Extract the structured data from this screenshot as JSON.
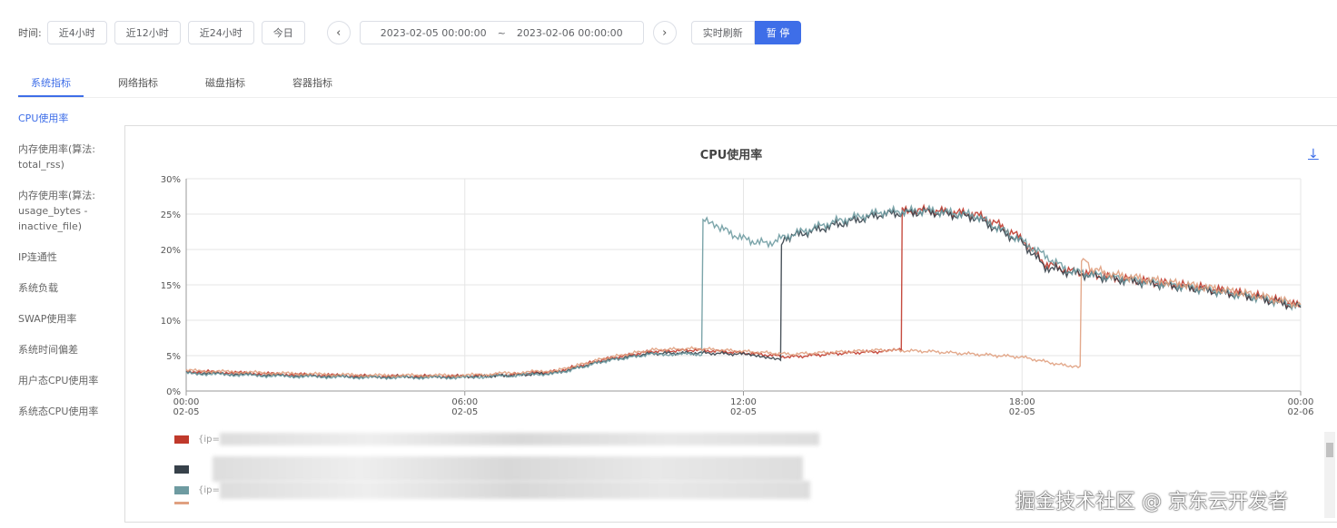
{
  "toolbar": {
    "label": "时间:",
    "quick": [
      "近4小时",
      "近12小时",
      "近24小时",
      "今日"
    ],
    "start": "2023-02-05 00:00:00",
    "sep": "~",
    "end": "2023-02-06 00:00:00",
    "prev_icon": "chevron-left-icon",
    "next_icon": "chevron-right-icon",
    "refresh": "实时刷新",
    "pause": "暂 停"
  },
  "tabs": [
    "系统指标",
    "网络指标",
    "磁盘指标",
    "容器指标"
  ],
  "sidebar": [
    "CPU使用率",
    "内存使用率(算法: total_rss)",
    "内存使用率(算法: usage_bytes - inactive_file)",
    "IP连通性",
    "系统负载",
    "SWAP使用率",
    "系统时间偏差",
    "用户态CPU使用率",
    "系统态CPU使用率"
  ],
  "download_icon": "↓",
  "watermark": "掘金技术社区 @ 京东云开发者",
  "accent": "#3e6ee8",
  "chart_data": {
    "type": "line",
    "title": "CPU使用率",
    "ylim": [
      0,
      30
    ],
    "yticks": [
      "0%",
      "5%",
      "10%",
      "15%",
      "20%",
      "25%",
      "30%"
    ],
    "xticks": [
      [
        "00:00",
        "02-05"
      ],
      [
        "06:00",
        "02-05"
      ],
      [
        "12:00",
        "02-05"
      ],
      [
        "18:00",
        "02-05"
      ],
      [
        "00:00",
        "02-06"
      ]
    ],
    "grid": true,
    "legend": "bottom",
    "series": [
      {
        "label": "{ip=",
        "color": "#c0392b",
        "points": [
          [
            0,
            2.8
          ],
          [
            2,
            2.4
          ],
          [
            4,
            2.1
          ],
          [
            6,
            2.1
          ],
          [
            7,
            2.3
          ],
          [
            8,
            2.8
          ],
          [
            9,
            4.5
          ],
          [
            10,
            5.6
          ],
          [
            11,
            5.8
          ],
          [
            12,
            5.4
          ],
          [
            13,
            4.8
          ],
          [
            14,
            5.3
          ],
          [
            15,
            5.6
          ],
          [
            15.4,
            5.8
          ],
          [
            15.42,
            25.5
          ],
          [
            16,
            25.5
          ],
          [
            17,
            25
          ],
          [
            17.5,
            23.5
          ],
          [
            18,
            21.5
          ],
          [
            18.5,
            18
          ],
          [
            19,
            17
          ],
          [
            20,
            16
          ],
          [
            21,
            15.3
          ],
          [
            22,
            14.5
          ],
          [
            23,
            13.5
          ],
          [
            24,
            12
          ]
        ]
      },
      {
        "label": "",
        "color": "#37414a",
        "points": [
          [
            0,
            2.6
          ],
          [
            2,
            2.2
          ],
          [
            4,
            2
          ],
          [
            6,
            2
          ],
          [
            7,
            2.2
          ],
          [
            8,
            2.6
          ],
          [
            9,
            4.3
          ],
          [
            10,
            5.3
          ],
          [
            11,
            5.4
          ],
          [
            12,
            5.2
          ],
          [
            12.8,
            4.6
          ],
          [
            12.82,
            21
          ],
          [
            13,
            21.8
          ],
          [
            14,
            23.5
          ],
          [
            15,
            25
          ],
          [
            16,
            25.3
          ],
          [
            17,
            24.5
          ],
          [
            18,
            21
          ],
          [
            18.5,
            17.5
          ],
          [
            19,
            16.8
          ],
          [
            20,
            15.8
          ],
          [
            21,
            15
          ],
          [
            22,
            14.2
          ],
          [
            23,
            13.2
          ],
          [
            24,
            11.8
          ]
        ]
      },
      {
        "label": "{ip=",
        "color": "#6e9ba1",
        "points": [
          [
            0,
            2.5
          ],
          [
            2,
            2.1
          ],
          [
            4,
            1.9
          ],
          [
            6,
            1.9
          ],
          [
            8,
            2.5
          ],
          [
            9,
            4.2
          ],
          [
            10,
            5.2
          ],
          [
            11.1,
            5.2
          ],
          [
            11.13,
            24
          ],
          [
            11.5,
            23
          ],
          [
            12,
            21.5
          ],
          [
            12.5,
            20.8
          ],
          [
            13,
            22
          ],
          [
            14,
            24
          ],
          [
            15,
            25.3
          ],
          [
            16,
            25.5
          ],
          [
            17,
            24.8
          ],
          [
            18,
            21.2
          ],
          [
            19,
            17
          ],
          [
            20,
            16
          ],
          [
            21,
            15.2
          ],
          [
            22,
            14.3
          ],
          [
            23,
            13.3
          ],
          [
            24,
            12
          ]
        ]
      },
      {
        "label": "",
        "color": "#e0a080",
        "points": [
          [
            0,
            2.9
          ],
          [
            2,
            2.5
          ],
          [
            4,
            2.2
          ],
          [
            6,
            2.2
          ],
          [
            8,
            2.9
          ],
          [
            9,
            4.6
          ],
          [
            10,
            5.8
          ],
          [
            11,
            6
          ],
          [
            12,
            5.6
          ],
          [
            13,
            5.2
          ],
          [
            14,
            5.5
          ],
          [
            15,
            5.8
          ],
          [
            16,
            5.6
          ],
          [
            17,
            5.2
          ],
          [
            18,
            4.8
          ],
          [
            19,
            3.5
          ],
          [
            19.25,
            3.3
          ],
          [
            19.28,
            19
          ],
          [
            19.5,
            17.2
          ],
          [
            20,
            16.4
          ],
          [
            21,
            15.5
          ],
          [
            22,
            14.6
          ],
          [
            23,
            13.6
          ],
          [
            24,
            12.2
          ]
        ]
      }
    ]
  }
}
